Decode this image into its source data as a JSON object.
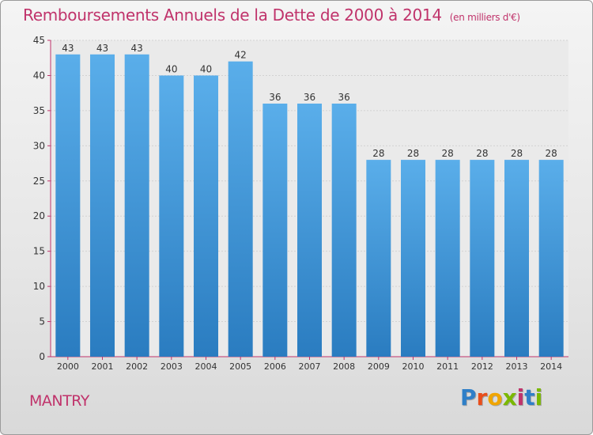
{
  "chart_data": {
    "type": "bar",
    "title": "Remboursements Annuels de la Dette de 2000 à 2014",
    "unit_note": "(en milliers d'€)",
    "categories": [
      "2000",
      "2001",
      "2002",
      "2003",
      "2004",
      "2005",
      "2006",
      "2007",
      "2008",
      "2009",
      "2010",
      "2011",
      "2012",
      "2013",
      "2014"
    ],
    "values": [
      43,
      43,
      43,
      40,
      40,
      42,
      36,
      36,
      36,
      28,
      28,
      28,
      28,
      28,
      28
    ],
    "ylim": [
      0,
      45
    ],
    "yticks": [
      0,
      5,
      10,
      15,
      20,
      25,
      30,
      35,
      40,
      45
    ],
    "xlabel": "",
    "ylabel": "",
    "grid": true,
    "bar_color_top": "#5aaeea",
    "bar_color_bottom": "#2a7cc0",
    "label_color": "#333333"
  },
  "commune": "MANTRY",
  "logo": {
    "letters": [
      "P",
      "r",
      "o",
      "x",
      "i",
      "t",
      "i"
    ]
  },
  "colors": {
    "accent": "#c0336b"
  }
}
